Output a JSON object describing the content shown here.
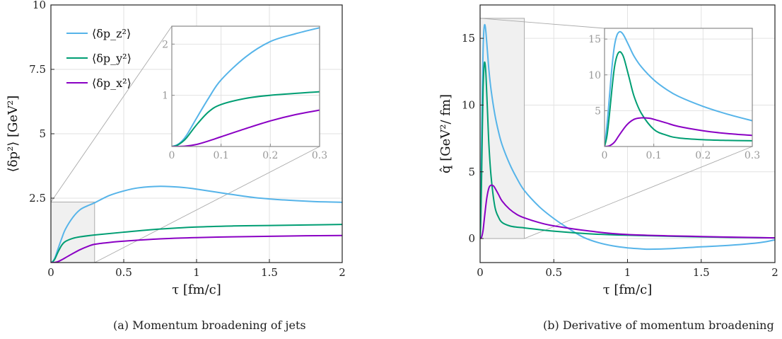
{
  "colors": {
    "z": "#56b4e9",
    "y": "#009e73",
    "x": "#8a00c4",
    "grid": "#e2e2e2",
    "frame": "#222222",
    "inset_tick": "#999999",
    "shade": "#f0f0f0"
  },
  "captions": {
    "a": "(a) Momentum broadening of jets",
    "b": "(b) Derivative of momentum broadening"
  },
  "chart_data": [
    {
      "id": "a",
      "type": "line",
      "xlabel": "τ [fm/c]",
      "ylabel": "⟨δp²⟩ [GeV²]",
      "xlim": [
        0,
        2
      ],
      "ylim": [
        0,
        10
      ],
      "xticks": [
        "0",
        "0.5",
        "1",
        "1.5",
        "2"
      ],
      "xtick_values": [
        0,
        0.5,
        1,
        1.5,
        2
      ],
      "yticks": [
        "2.5",
        "5",
        "7.5",
        "10"
      ],
      "ytick_values": [
        2.5,
        5,
        7.5,
        10
      ],
      "grid": true,
      "legend": "top-left",
      "series": [
        {
          "name": "⟨δp_z²⟩",
          "key": "z",
          "x": [
            0,
            0.01,
            0.02,
            0.03,
            0.05,
            0.075,
            0.1,
            0.15,
            0.2,
            0.25,
            0.3,
            0.4,
            0.5,
            0.6,
            0.75,
            0.9,
            1.0,
            1.2,
            1.4,
            1.6,
            1.8,
            2.0
          ],
          "y": [
            0,
            0.03,
            0.1,
            0.22,
            0.55,
            0.95,
            1.3,
            1.75,
            2.05,
            2.2,
            2.32,
            2.6,
            2.78,
            2.9,
            2.96,
            2.92,
            2.85,
            2.68,
            2.52,
            2.43,
            2.37,
            2.34
          ]
        },
        {
          "name": "⟨δp_y²⟩",
          "key": "y",
          "x": [
            0,
            0.01,
            0.02,
            0.03,
            0.05,
            0.075,
            0.1,
            0.15,
            0.2,
            0.3,
            0.5,
            0.75,
            1.0,
            1.25,
            1.5,
            1.75,
            2.0
          ],
          "y": [
            0,
            0.02,
            0.08,
            0.17,
            0.42,
            0.68,
            0.82,
            0.94,
            1.0,
            1.07,
            1.18,
            1.3,
            1.38,
            1.42,
            1.44,
            1.46,
            1.48
          ]
        },
        {
          "name": "⟨δp_x²⟩",
          "key": "x",
          "x": [
            0,
            0.025,
            0.05,
            0.075,
            0.1,
            0.15,
            0.2,
            0.25,
            0.3,
            0.4,
            0.5,
            0.75,
            1.0,
            1.25,
            1.5,
            1.75,
            2.0
          ],
          "y": [
            0,
            0.005,
            0.04,
            0.11,
            0.19,
            0.35,
            0.5,
            0.62,
            0.71,
            0.78,
            0.83,
            0.92,
            0.97,
            1.0,
            1.02,
            1.04,
            1.05
          ]
        }
      ],
      "inset": {
        "xlim": [
          0,
          0.3
        ],
        "ylim": [
          0,
          2.35
        ],
        "xticks": [
          "0",
          "0.1",
          "0.2",
          "0.3"
        ],
        "xtick_values": [
          0,
          0.1,
          0.2,
          0.3
        ],
        "yticks": [
          "1",
          "2"
        ],
        "ytick_values": [
          1,
          2
        ]
      }
    },
    {
      "id": "b",
      "type": "line",
      "xlabel": "τ [fm/c]",
      "ylabel": "q̂ [GeV²/ fm]",
      "xlim": [
        0,
        2
      ],
      "ylim": [
        -1.8,
        17.5
      ],
      "xticks": [
        "0",
        "0.5",
        "1",
        "1.5",
        "2"
      ],
      "xtick_values": [
        0,
        0.5,
        1,
        1.5,
        2
      ],
      "yticks": [
        "0",
        "5",
        "10",
        "15"
      ],
      "ytick_values": [
        0,
        5,
        10,
        15
      ],
      "grid": true,
      "series": [
        {
          "key": "z",
          "x": [
            0,
            0.005,
            0.01,
            0.015,
            0.02,
            0.025,
            0.03,
            0.035,
            0.04,
            0.05,
            0.06,
            0.075,
            0.1,
            0.125,
            0.15,
            0.2,
            0.25,
            0.3,
            0.4,
            0.5,
            0.6,
            0.7,
            0.8,
            0.9,
            1.0,
            1.1,
            1.15,
            1.3,
            1.5,
            1.7,
            1.9,
            2.0
          ],
          "y": [
            0,
            3,
            7,
            11,
            14,
            15.5,
            16.0,
            15.9,
            15.4,
            14.0,
            12.6,
            11.1,
            9.3,
            8.0,
            7.0,
            5.6,
            4.5,
            3.6,
            2.4,
            1.5,
            0.75,
            0.1,
            -0.3,
            -0.55,
            -0.7,
            -0.78,
            -0.8,
            -0.75,
            -0.62,
            -0.5,
            -0.3,
            -0.1
          ]
        },
        {
          "key": "y",
          "x": [
            0,
            0.005,
            0.01,
            0.015,
            0.02,
            0.025,
            0.03,
            0.035,
            0.04,
            0.05,
            0.06,
            0.075,
            0.1,
            0.125,
            0.15,
            0.2,
            0.25,
            0.3,
            0.5,
            0.75,
            1.0,
            1.5,
            2.0
          ],
          "y": [
            0,
            1.5,
            4.5,
            8,
            11,
            12.6,
            13.2,
            13.0,
            12.2,
            9.6,
            7.0,
            4.6,
            2.4,
            1.6,
            1.2,
            0.95,
            0.85,
            0.8,
            0.55,
            0.35,
            0.25,
            0.12,
            0.05
          ]
        },
        {
          "key": "x",
          "x": [
            0,
            0.01,
            0.02,
            0.03,
            0.045,
            0.06,
            0.075,
            0.09,
            0.1,
            0.125,
            0.15,
            0.2,
            0.25,
            0.3,
            0.4,
            0.5,
            0.75,
            1.0,
            1.5,
            2.0
          ],
          "y": [
            0,
            0.1,
            0.6,
            1.6,
            3.0,
            3.8,
            4.0,
            3.95,
            3.8,
            3.3,
            2.8,
            2.2,
            1.8,
            1.55,
            1.2,
            0.95,
            0.55,
            0.3,
            0.15,
            0.05
          ]
        }
      ],
      "inset": {
        "xlim": [
          0,
          0.3
        ],
        "ylim": [
          0,
          16.5
        ],
        "xticks": [
          "0",
          "0.1",
          "0.2",
          "0.3"
        ],
        "xtick_values": [
          0,
          0.1,
          0.2,
          0.3
        ],
        "yticks": [
          "5",
          "10",
          "15"
        ],
        "ytick_values": [
          5,
          10,
          15
        ]
      }
    }
  ]
}
